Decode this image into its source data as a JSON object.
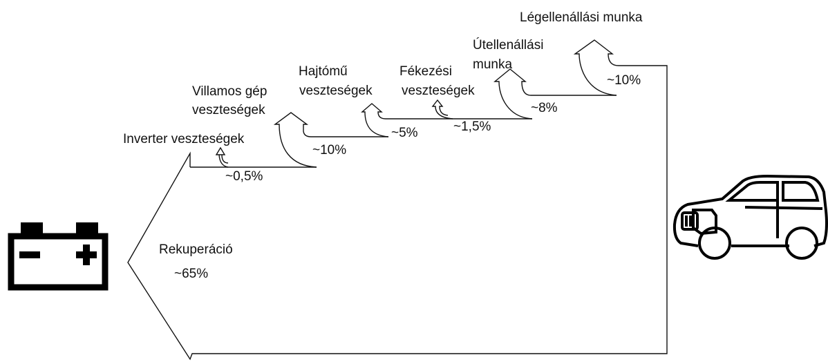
{
  "recuperation": {
    "label": "Rekuperáció",
    "value": "~65%"
  },
  "losses": [
    {
      "label_lines": [
        "Inverter veszteségek"
      ],
      "value": "~0,5%"
    },
    {
      "label_lines": [
        "Villamos gép",
        "veszteségek"
      ],
      "value": "~10%"
    },
    {
      "label_lines": [
        "Hajtómű",
        "veszteségek"
      ],
      "value": "~5%"
    },
    {
      "label_lines": [
        "Fékezési",
        "veszteségek"
      ],
      "value": "~1,5%"
    },
    {
      "label_lines": [
        "Útellenállási",
        "munka"
      ],
      "value": "~8%"
    },
    {
      "label_lines": [
        "Légellenállási munka"
      ],
      "value": "~10%"
    }
  ]
}
